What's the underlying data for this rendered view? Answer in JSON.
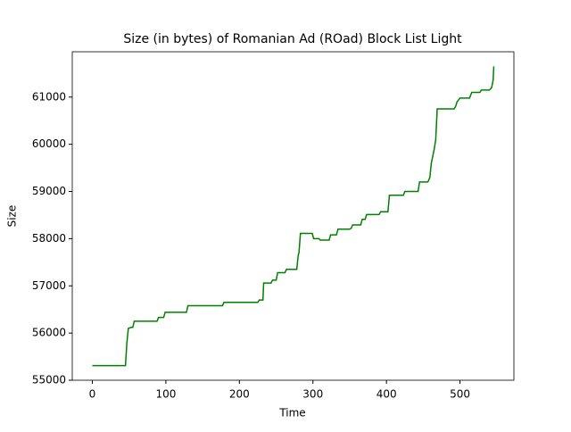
{
  "chart_data": {
    "type": "line",
    "title": "Size (in bytes) of Romanian Ad (ROad) Block List Light",
    "x_label": "Time",
    "y_label": "Size",
    "x": [
      0,
      43,
      45,
      47,
      49,
      53,
      55,
      57,
      88,
      90,
      97,
      99,
      128,
      130,
      177,
      179,
      225,
      227,
      232,
      233,
      243,
      245,
      250,
      252,
      262,
      264,
      278,
      280,
      281,
      283,
      299,
      301,
      308,
      310,
      322,
      324,
      332,
      334,
      350,
      352,
      354,
      365,
      367,
      371,
      373,
      390,
      392,
      402,
      404,
      423,
      425,
      443,
      445,
      456,
      457,
      459,
      461,
      465,
      467,
      469,
      492,
      494,
      496,
      500,
      513,
      516,
      527,
      529,
      540,
      543,
      545,
      546
    ],
    "series": [
      {
        "name": "Size",
        "color": "#008000",
        "values": [
          55310,
          55310,
          55310,
          55800,
          56100,
          56120,
          56120,
          56250,
          56250,
          56330,
          56330,
          56440,
          56440,
          56580,
          56580,
          56650,
          56650,
          56700,
          56700,
          57060,
          57060,
          57120,
          57120,
          57280,
          57280,
          57350,
          57350,
          57650,
          57700,
          58110,
          58110,
          58000,
          58000,
          57970,
          57970,
          58080,
          58080,
          58200,
          58200,
          58220,
          58290,
          58290,
          58410,
          58410,
          58510,
          58510,
          58570,
          58570,
          58920,
          58920,
          59000,
          59000,
          59200,
          59200,
          59220,
          59300,
          59600,
          59900,
          60100,
          60750,
          60750,
          60800,
          60900,
          60980,
          60980,
          61100,
          61100,
          61150,
          61150,
          61200,
          61350,
          61650
        ]
      }
    ],
    "xlim": [
      -27.3,
      573.3
    ],
    "ylim": [
      55000,
      61960
    ],
    "xticks": [
      0,
      100,
      200,
      300,
      400,
      500
    ],
    "yticks": [
      55000,
      56000,
      57000,
      58000,
      59000,
      60000,
      61000
    ]
  }
}
